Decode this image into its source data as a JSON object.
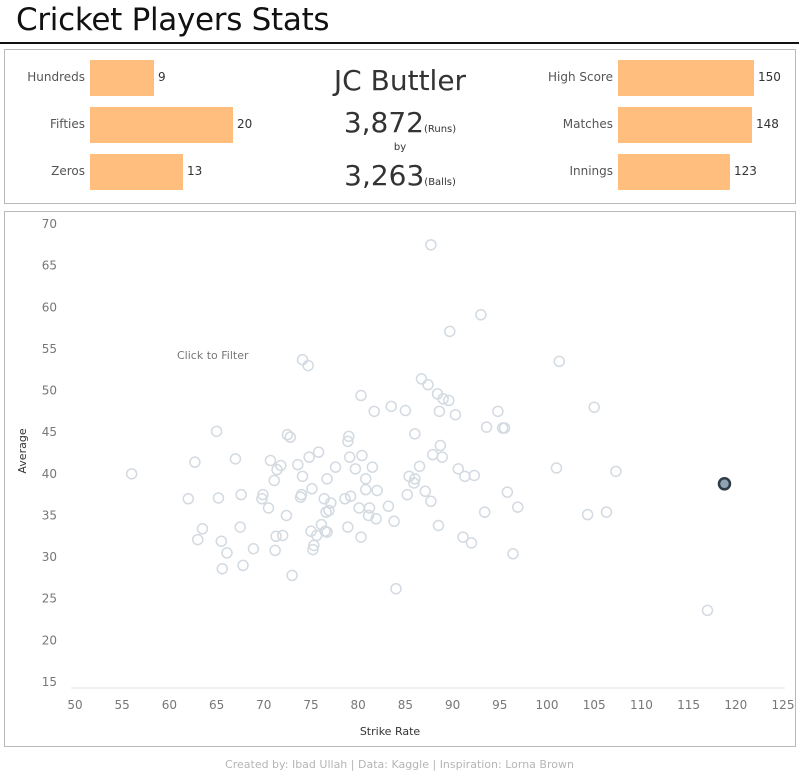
{
  "page": {
    "title": "Cricket Players Stats",
    "credits": "Created by: Ibad Ullah  |  Data: Kaggle  |  Inspiration: Lorna Brown"
  },
  "player": {
    "name": "JC Buttler",
    "runs": "3,872",
    "runs_unit": "(Runs)",
    "by_label": "by",
    "balls": "3,263",
    "balls_unit": "(Balls)"
  },
  "colors": {
    "bar": "#ffbe7d",
    "point_stroke": "#d3dae1",
    "selected_stroke": "#2f3b45",
    "selected_fill": "#8fa3b3"
  },
  "left_stats": [
    {
      "label": "Hundreds",
      "value": 9
    },
    {
      "label": "Fifties",
      "value": 20
    },
    {
      "label": "Zeros",
      "value": 13
    }
  ],
  "right_stats": [
    {
      "label": "High Score",
      "value": 150
    },
    {
      "label": "Matches",
      "value": 148
    },
    {
      "label": "Innings",
      "value": 123
    }
  ],
  "chart_data": {
    "type": "scatter",
    "xlabel": "Strike Rate",
    "ylabel": "Average",
    "xlim": [
      50,
      125
    ],
    "ylim": [
      15,
      70
    ],
    "x_ticks": [
      50,
      55,
      60,
      65,
      70,
      75,
      80,
      85,
      90,
      95,
      100,
      105,
      110,
      115,
      120,
      125
    ],
    "y_ticks": [
      15,
      20,
      25,
      30,
      35,
      40,
      45,
      50,
      55,
      60,
      65,
      70
    ],
    "grid": false,
    "annotation": "Click to Filter",
    "selected": {
      "x": 118.8,
      "y": 38.8
    },
    "points": [
      [
        56.0,
        40.0
      ],
      [
        62.0,
        37.0
      ],
      [
        62.7,
        41.4
      ],
      [
        63.0,
        32.1
      ],
      [
        63.5,
        33.4
      ],
      [
        65.0,
        45.1
      ],
      [
        65.2,
        37.1
      ],
      [
        65.5,
        31.9
      ],
      [
        65.6,
        28.6
      ],
      [
        66.1,
        30.5
      ],
      [
        67.0,
        41.8
      ],
      [
        67.5,
        33.6
      ],
      [
        67.6,
        37.5
      ],
      [
        67.8,
        29.0
      ],
      [
        68.9,
        31.0
      ],
      [
        69.8,
        37.0
      ],
      [
        69.9,
        37.5
      ],
      [
        70.5,
        35.9
      ],
      [
        70.7,
        41.6
      ],
      [
        71.1,
        39.2
      ],
      [
        71.2,
        30.8
      ],
      [
        71.3,
        32.5
      ],
      [
        71.4,
        40.5
      ],
      [
        71.8,
        41.0
      ],
      [
        72.0,
        32.6
      ],
      [
        72.4,
        35.0
      ],
      [
        72.5,
        44.7
      ],
      [
        72.8,
        44.4
      ],
      [
        73.0,
        27.8
      ],
      [
        73.6,
        41.1
      ],
      [
        73.9,
        37.2
      ],
      [
        74.0,
        37.5
      ],
      [
        74.1,
        39.7
      ],
      [
        74.1,
        53.7
      ],
      [
        74.7,
        53.0
      ],
      [
        74.8,
        42.0
      ],
      [
        75.0,
        33.1
      ],
      [
        75.1,
        38.2
      ],
      [
        75.2,
        30.9
      ],
      [
        75.3,
        31.4
      ],
      [
        75.6,
        32.6
      ],
      [
        75.8,
        42.6
      ],
      [
        76.1,
        33.9
      ],
      [
        76.4,
        37.0
      ],
      [
        76.5,
        33.1
      ],
      [
        76.6,
        35.4
      ],
      [
        76.7,
        33.0
      ],
      [
        76.7,
        39.4
      ],
      [
        76.9,
        35.6
      ],
      [
        77.1,
        36.5
      ],
      [
        77.6,
        40.8
      ],
      [
        78.6,
        37.0
      ],
      [
        78.9,
        33.6
      ],
      [
        78.9,
        43.9
      ],
      [
        79.0,
        44.5
      ],
      [
        79.1,
        42.0
      ],
      [
        79.2,
        37.3
      ],
      [
        79.7,
        40.6
      ],
      [
        80.1,
        35.9
      ],
      [
        80.3,
        32.4
      ],
      [
        80.3,
        49.4
      ],
      [
        80.4,
        42.2
      ],
      [
        80.8,
        38.1
      ],
      [
        80.8,
        39.4
      ],
      [
        81.1,
        35.0
      ],
      [
        81.2,
        35.9
      ],
      [
        81.5,
        40.8
      ],
      [
        81.7,
        47.5
      ],
      [
        81.9,
        34.6
      ],
      [
        82.0,
        38.0
      ],
      [
        83.2,
        36.1
      ],
      [
        83.5,
        48.1
      ],
      [
        83.8,
        34.3
      ],
      [
        84.0,
        26.2
      ],
      [
        85.0,
        47.6
      ],
      [
        85.2,
        37.5
      ],
      [
        85.4,
        39.7
      ],
      [
        85.9,
        38.9
      ],
      [
        86.0,
        39.4
      ],
      [
        86.0,
        44.8
      ],
      [
        86.5,
        40.9
      ],
      [
        86.7,
        51.4
      ],
      [
        87.1,
        37.9
      ],
      [
        87.4,
        50.7
      ],
      [
        87.7,
        36.7
      ],
      [
        87.7,
        67.5
      ],
      [
        87.9,
        42.3
      ],
      [
        88.4,
        49.6
      ],
      [
        88.5,
        33.8
      ],
      [
        88.6,
        47.5
      ],
      [
        88.7,
        43.4
      ],
      [
        88.9,
        42.0
      ],
      [
        89.0,
        49.0
      ],
      [
        89.6,
        48.8
      ],
      [
        89.7,
        57.1
      ],
      [
        90.3,
        47.1
      ],
      [
        90.6,
        40.6
      ],
      [
        91.1,
        32.4
      ],
      [
        91.3,
        39.7
      ],
      [
        92.0,
        31.7
      ],
      [
        92.3,
        39.8
      ],
      [
        93.0,
        59.1
      ],
      [
        93.4,
        35.4
      ],
      [
        93.6,
        45.6
      ],
      [
        94.8,
        47.5
      ],
      [
        95.3,
        45.5
      ],
      [
        95.5,
        45.5
      ],
      [
        95.8,
        37.8
      ],
      [
        96.4,
        30.4
      ],
      [
        96.9,
        36.0
      ],
      [
        101.0,
        40.7
      ],
      [
        101.3,
        53.5
      ],
      [
        104.3,
        35.1
      ],
      [
        105.0,
        48.0
      ],
      [
        106.3,
        35.4
      ],
      [
        107.3,
        40.3
      ],
      [
        117.0,
        23.6
      ]
    ]
  }
}
